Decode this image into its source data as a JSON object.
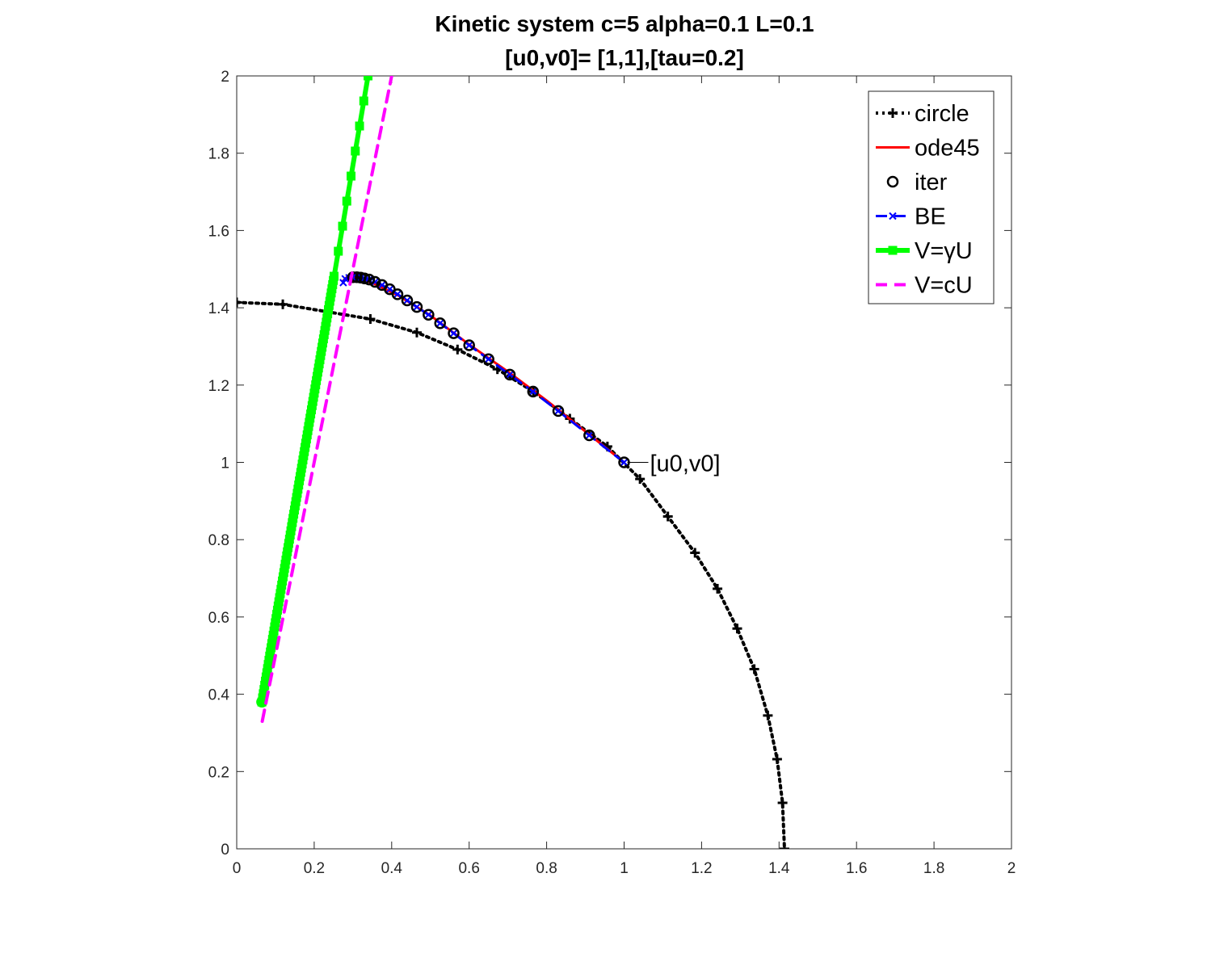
{
  "chart_data": {
    "type": "line",
    "title": "Kinetic system c=5 alpha=0.1 L=0.1",
    "subtitle": "[u0,v0]= [1,1],[tau=0.2]",
    "xlabel": "",
    "ylabel": "",
    "xlim": [
      0,
      2
    ],
    "ylim": [
      0,
      2
    ],
    "xticks": [
      "0",
      "0.2",
      "0.4",
      "0.6",
      "0.8",
      "1",
      "1.2",
      "1.4",
      "1.6",
      "1.8",
      "2"
    ],
    "yticks": [
      "0",
      "0.2",
      "0.4",
      "0.6",
      "0.8",
      "1",
      "1.2",
      "1.4",
      "1.6",
      "1.8",
      "2"
    ],
    "grid": false,
    "legend_position": "top-right",
    "series": [
      {
        "name": "circle",
        "color": "#000000",
        "style": "dotted",
        "marker": "plus",
        "x": [
          0,
          0.119,
          0.345,
          0.465,
          0.57,
          0.673,
          0.766,
          0.86,
          0.957,
          1.041,
          1.113,
          1.183,
          1.241,
          1.292,
          1.336,
          1.371,
          1.395,
          1.409,
          1.414
        ],
        "y": [
          1.414,
          1.409,
          1.371,
          1.336,
          1.292,
          1.241,
          1.183,
          1.113,
          1.041,
          0.957,
          0.86,
          0.766,
          0.673,
          0.57,
          0.465,
          0.345,
          0.232,
          0.119,
          0
        ]
      },
      {
        "name": "ode45",
        "color": "#ff0000",
        "style": "solid",
        "marker": "none",
        "x": [
          1.0,
          0.9,
          0.8,
          0.7,
          0.6,
          0.5,
          0.42,
          0.36,
          0.32,
          0.3,
          0.285,
          0.275
        ],
        "y": [
          1.0,
          1.08,
          1.16,
          1.235,
          1.305,
          1.38,
          1.43,
          1.46,
          1.475,
          1.48,
          1.48,
          1.47
        ]
      },
      {
        "name": "iter",
        "color": "#000000",
        "style": "none",
        "marker": "circle",
        "x": [
          1.0,
          0.91,
          0.83,
          0.765,
          0.705,
          0.65,
          0.6,
          0.56,
          0.525,
          0.495,
          0.465,
          0.44,
          0.415,
          0.395,
          0.375,
          0.357,
          0.342,
          0.33,
          0.32,
          0.31,
          0.3
        ],
        "y": [
          1.0,
          1.07,
          1.133,
          1.183,
          1.227,
          1.267,
          1.303,
          1.334,
          1.36,
          1.382,
          1.402,
          1.419,
          1.435,
          1.448,
          1.459,
          1.467,
          1.473,
          1.476,
          1.478,
          1.479,
          1.479
        ]
      },
      {
        "name": "BE",
        "color": "#0000ff",
        "style": "dashed",
        "marker": "x",
        "x": [
          1.0,
          0.91,
          0.83,
          0.765,
          0.705,
          0.65,
          0.6,
          0.56,
          0.525,
          0.495,
          0.465,
          0.44,
          0.415,
          0.395,
          0.375,
          0.357,
          0.342,
          0.33,
          0.32,
          0.31,
          0.3,
          0.29,
          0.28,
          0.275
        ],
        "y": [
          1.0,
          1.07,
          1.133,
          1.183,
          1.227,
          1.267,
          1.303,
          1.334,
          1.36,
          1.382,
          1.402,
          1.419,
          1.435,
          1.448,
          1.459,
          1.467,
          1.473,
          1.476,
          1.478,
          1.479,
          1.479,
          1.478,
          1.475,
          1.465
        ]
      },
      {
        "name": "V=γU",
        "color": "#00ff00",
        "style": "solid",
        "marker": "square",
        "x": [
          0.065,
          0.339
        ],
        "y": [
          0.38,
          2.0
        ]
      },
      {
        "name": "V=cU",
        "color": "#ff00ff",
        "style": "dashed",
        "marker": "none",
        "x": [
          0.066,
          0.4
        ],
        "y": [
          0.33,
          2.0
        ]
      }
    ],
    "annotations": [
      {
        "text": "[u0,v0]",
        "x": 1.0,
        "y": 1.0
      }
    ]
  }
}
